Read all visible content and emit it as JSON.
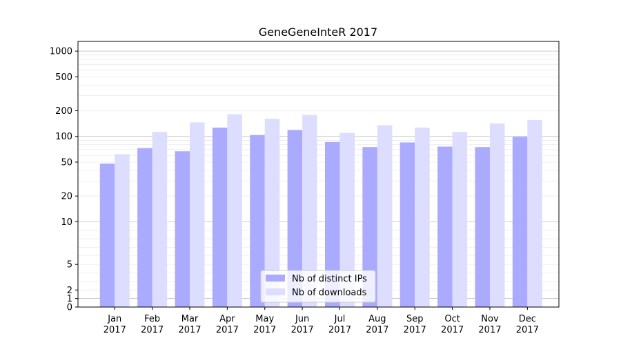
{
  "chart_data": {
    "type": "bar",
    "title": "GeneGeneInteR 2017",
    "xlabel": "",
    "ylabel": "",
    "yscale": "symlog",
    "ylim": [
      0,
      1300
    ],
    "y_ticks": [
      0,
      1,
      2,
      5,
      10,
      20,
      50,
      100,
      200,
      500,
      1000
    ],
    "categories": [
      [
        "Jan",
        "2017"
      ],
      [
        "Feb",
        "2017"
      ],
      [
        "Mar",
        "2017"
      ],
      [
        "Apr",
        "2017"
      ],
      [
        "May",
        "2017"
      ],
      [
        "Jun",
        "2017"
      ],
      [
        "Jul",
        "2017"
      ],
      [
        "Aug",
        "2017"
      ],
      [
        "Sep",
        "2017"
      ],
      [
        "Oct",
        "2017"
      ],
      [
        "Nov",
        "2017"
      ],
      [
        "Dec",
        "2017"
      ]
    ],
    "series": [
      {
        "name": "Nb of distinct IPs",
        "color": "#aaaaff",
        "values": [
          48,
          73,
          67,
          127,
          104,
          119,
          86,
          75,
          85,
          76,
          75,
          99
        ]
      },
      {
        "name": "Nb of downloads",
        "color": "#ddddff",
        "values": [
          62,
          113,
          146,
          182,
          161,
          179,
          110,
          135,
          127,
          113,
          142,
          156
        ]
      }
    ],
    "grid": true,
    "legend_position": "bottom-center"
  }
}
